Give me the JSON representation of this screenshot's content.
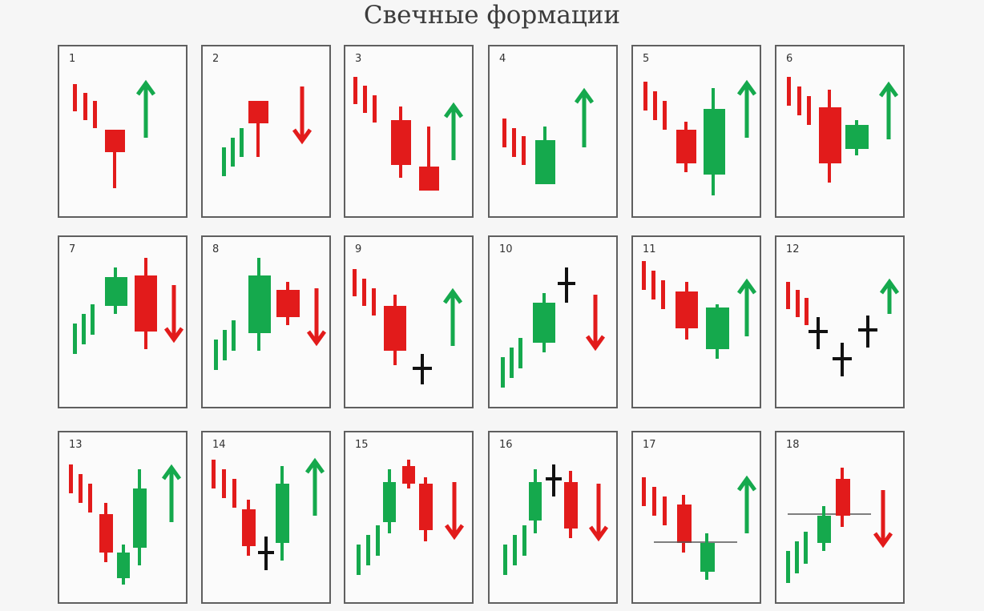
{
  "title": "Свечные формации",
  "colors": {
    "bull": "#15a94d",
    "bear": "#e21b1b",
    "doji": "#111111",
    "panel_border": "#5f5f5f",
    "level_line": "#555555"
  },
  "patterns": [
    {
      "number": "1",
      "trend": "down",
      "candles": [
        {
          "color": "bear",
          "kind": "body",
          "direction": "down"
        }
      ],
      "signal": "up"
    },
    {
      "number": "2",
      "trend": "up",
      "candles": [
        {
          "color": "bear",
          "kind": "body"
        }
      ],
      "signal": "down"
    },
    {
      "number": "3",
      "trend": "down",
      "candles": [
        {
          "color": "bear",
          "kind": "body"
        },
        {
          "color": "bear",
          "kind": "body"
        }
      ],
      "signal": "up"
    },
    {
      "number": "4",
      "trend": "down",
      "candles": [
        {
          "color": "bull",
          "kind": "body"
        }
      ],
      "signal": "up"
    },
    {
      "number": "5",
      "trend": "down",
      "candles": [
        {
          "color": "bear",
          "kind": "body"
        },
        {
          "color": "bull",
          "kind": "body"
        }
      ],
      "signal": "up"
    },
    {
      "number": "6",
      "trend": "down",
      "candles": [
        {
          "color": "bear",
          "kind": "body"
        },
        {
          "color": "bull",
          "kind": "body"
        }
      ],
      "signal": "up"
    },
    {
      "number": "7",
      "trend": "up",
      "candles": [
        {
          "color": "bull",
          "kind": "body"
        },
        {
          "color": "bear",
          "kind": "body"
        }
      ],
      "signal": "down"
    },
    {
      "number": "8",
      "trend": "up",
      "candles": [
        {
          "color": "bull",
          "kind": "body"
        },
        {
          "color": "bear",
          "kind": "body"
        }
      ],
      "signal": "down"
    },
    {
      "number": "9",
      "trend": "down",
      "candles": [
        {
          "color": "bear",
          "kind": "body"
        },
        {
          "color": "doji",
          "kind": "doji"
        }
      ],
      "signal": "up"
    },
    {
      "number": "10",
      "trend": "up",
      "candles": [
        {
          "color": "bull",
          "kind": "body"
        },
        {
          "color": "doji",
          "kind": "doji"
        }
      ],
      "signal": "down"
    },
    {
      "number": "11",
      "trend": "down",
      "candles": [
        {
          "color": "bear",
          "kind": "body"
        },
        {
          "color": "bull",
          "kind": "body"
        }
      ],
      "signal": "up"
    },
    {
      "number": "12",
      "trend": "down",
      "candles": [
        {
          "color": "doji",
          "kind": "doji"
        },
        {
          "color": "doji",
          "kind": "doji"
        },
        {
          "color": "doji",
          "kind": "doji"
        }
      ],
      "signal": "up"
    },
    {
      "number": "13",
      "trend": "down",
      "candles": [
        {
          "color": "bear",
          "kind": "body"
        },
        {
          "color": "bull",
          "kind": "body"
        },
        {
          "color": "bull",
          "kind": "body"
        }
      ],
      "signal": "up"
    },
    {
      "number": "14",
      "trend": "down",
      "candles": [
        {
          "color": "bear",
          "kind": "body"
        },
        {
          "color": "doji",
          "kind": "doji"
        },
        {
          "color": "bull",
          "kind": "body"
        }
      ],
      "signal": "up"
    },
    {
      "number": "15",
      "trend": "up",
      "candles": [
        {
          "color": "bull",
          "kind": "body"
        },
        {
          "color": "bear",
          "kind": "body"
        },
        {
          "color": "bear",
          "kind": "body"
        }
      ],
      "signal": "down"
    },
    {
      "number": "16",
      "trend": "up",
      "candles": [
        {
          "color": "bull",
          "kind": "body"
        },
        {
          "color": "doji",
          "kind": "doji"
        },
        {
          "color": "bear",
          "kind": "body"
        }
      ],
      "signal": "down"
    },
    {
      "number": "17",
      "trend": "down",
      "candles": [
        {
          "color": "bear",
          "kind": "body"
        },
        {
          "color": "bull",
          "kind": "body"
        }
      ],
      "signal": "up",
      "level_line": true
    },
    {
      "number": "18",
      "trend": "up",
      "candles": [
        {
          "color": "bull",
          "kind": "body"
        },
        {
          "color": "bear",
          "kind": "body"
        }
      ],
      "signal": "down",
      "level_line": true
    }
  ]
}
